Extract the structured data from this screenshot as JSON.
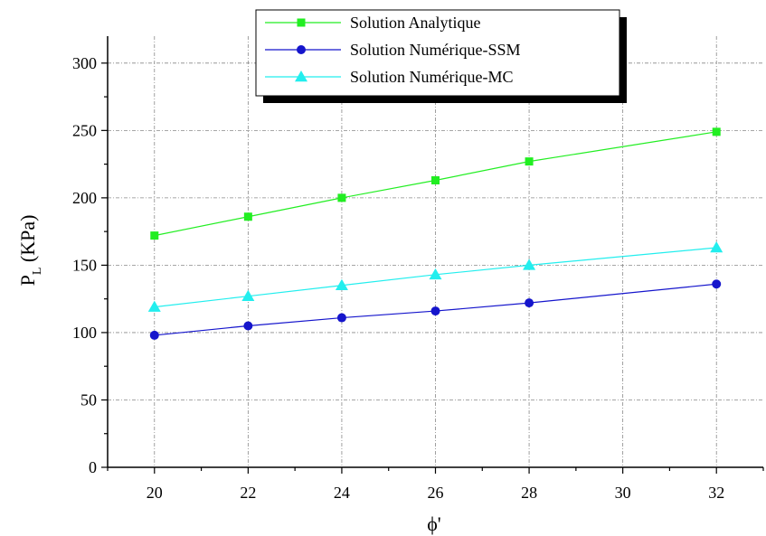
{
  "chart_data": {
    "type": "line",
    "xlabel": "ϕ'",
    "ylabel": "P_L (KPa)",
    "ylabel_main": "P",
    "ylabel_sub": "L",
    "ylabel_rest": " (KPa)",
    "xlim": [
      19,
      33
    ],
    "ylim": [
      0,
      320
    ],
    "xticks": [
      20,
      22,
      24,
      26,
      28,
      30,
      32
    ],
    "yticks": [
      0,
      50,
      100,
      150,
      200,
      250,
      300
    ],
    "grid": true,
    "legend_position": "top-center",
    "series": [
      {
        "name": "Solution Analytique",
        "marker": "square",
        "color": "#22ee22",
        "x": [
          20,
          22,
          24,
          26,
          28,
          32
        ],
        "values": [
          172,
          186,
          200,
          213,
          227,
          249
        ]
      },
      {
        "name": "Solution Numérique-SSM",
        "marker": "circle",
        "color": "#1515cc",
        "x": [
          20,
          22,
          24,
          26,
          28,
          32
        ],
        "values": [
          98,
          105,
          111,
          116,
          122,
          136
        ]
      },
      {
        "name": "Solution Numérique-MC",
        "marker": "triangle",
        "color": "#22eeee",
        "x": [
          20,
          22,
          24,
          26,
          28,
          32
        ],
        "values": [
          119,
          127,
          135,
          143,
          150,
          163
        ]
      }
    ]
  }
}
